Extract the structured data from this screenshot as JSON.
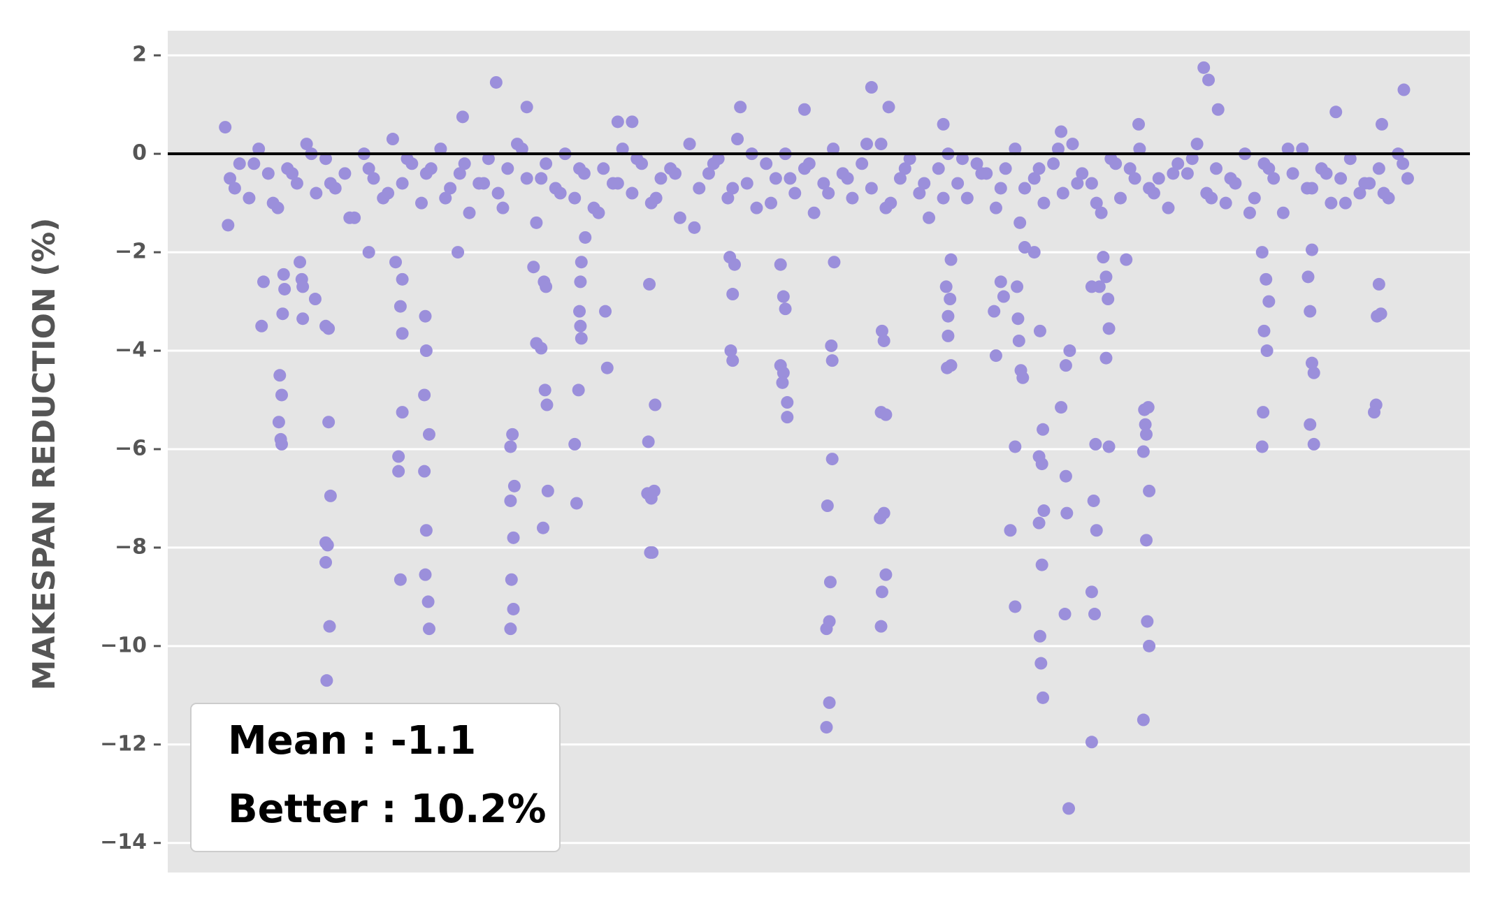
{
  "chart_data": {
    "type": "scatter",
    "ylabel": "MAKESPAN REDUCTION (%)",
    "annotations": [
      "Mean : -1.1",
      "Better : 10.2%"
    ],
    "color": "#9b8fdb",
    "hline": 0,
    "grid": true,
    "xlim": [
      175,
      1535
    ],
    "ylim": [
      -14.6,
      2.5
    ],
    "yticks": [
      2,
      0,
      {
        "value": -2,
        "label": "−2"
      },
      {
        "value": -4,
        "label": "−4"
      },
      {
        "value": -6,
        "label": "−6"
      },
      {
        "value": -8,
        "label": "−8"
      },
      {
        "value": -10,
        "label": "−10"
      },
      {
        "value": -12,
        "label": "−12"
      },
      {
        "value": -14,
        "label": "−14"
      }
    ],
    "x": [
      240,
      250,
      260,
      270,
      280,
      290,
      300,
      310,
      320,
      330,
      340,
      350,
      360,
      370,
      380,
      390,
      400,
      410,
      420,
      430,
      440,
      450,
      460,
      470,
      480,
      490,
      500,
      510,
      520,
      530,
      540,
      550,
      560,
      570,
      580,
      590,
      600,
      610,
      620,
      630,
      640,
      650,
      660,
      670,
      680,
      690,
      700,
      710,
      720,
      730,
      740,
      750,
      760,
      770,
      780,
      790,
      800,
      810,
      820,
      830,
      840,
      850,
      860,
      870,
      880,
      890,
      900,
      910,
      920,
      930,
      940,
      950,
      960,
      970,
      980,
      990,
      1000,
      1010,
      1020,
      1030,
      1040,
      1050,
      1060,
      1070,
      1080,
      1090,
      1100,
      1110,
      1120,
      1130,
      1140,
      1150,
      1160,
      1170,
      1180,
      1190,
      1200,
      1210,
      1220,
      1230,
      1240,
      1250,
      1260,
      1270,
      1280,
      1290,
      1300,
      1310,
      1320,
      1330,
      1340,
      1350,
      1360,
      1370,
      1380,
      1390,
      1400,
      1410,
      1420,
      1430,
      1440,
      1450,
      1460,
      1470,
      245,
      265,
      285,
      305,
      325,
      345,
      365,
      385,
      405,
      425,
      445,
      465,
      485,
      505,
      525,
      545,
      565,
      585,
      605,
      625,
      645,
      665,
      685,
      705,
      725,
      745,
      765,
      785,
      805,
      825,
      845,
      865,
      885,
      905,
      925,
      945,
      965,
      985,
      1005,
      1025,
      1045,
      1065,
      1085,
      1105,
      1125,
      1145,
      1165,
      1185,
      1205,
      1225,
      1245,
      1265,
      1285,
      1305,
      1325,
      1345,
      1365,
      1385,
      1405,
      1425,
      1445,
      1465,
      235,
      238,
      275,
      273,
      292,
      294,
      291,
      293,
      294,
      296,
      297,
      295,
      313,
      315,
      316,
      316,
      329,
      340,
      343,
      343,
      345,
      340,
      342,
      340,
      344,
      341,
      385,
      413,
      420,
      418,
      420,
      420,
      416,
      416,
      418,
      444,
      445,
      443,
      448,
      443,
      445,
      444,
      447,
      448,
      478,
      483,
      518,
      550,
      533,
      535,
      537,
      533,
      536,
      534,
      536,
      533,
      557,
      560,
      565,
      568,
      570,
      569,
      571,
      572,
      567,
      600,
      602,
      604,
      605,
      606,
      607,
      606,
      607,
      611,
      632,
      634,
      645,
      660,
      678,
      677,
      676,
      680,
      683,
      684,
      679,
      681,
      762,
      765,
      763,
      765,
      767,
      773,
      815,
      818,
      820,
      815,
      818,
      817,
      822,
      822,
      840,
      864,
      867,
      863,
      866,
      866,
      863,
      869,
      868,
      869,
      871,
      910,
      928,
      921,
      923,
      920,
      925,
      919,
      923,
      925,
      921,
      920,
      985,
      988,
      992,
      990,
      990,
      989,
      993,
      993,
      1038,
      1040,
      1045,
      1048,
      1055,
      1060,
      1060,
      1062,
      1063,
      1064,
      1066,
      1068,
      1070,
      1080,
      1085,
      1088,
      1089,
      1086,
      1085,
      1090,
      1088,
      1086,
      1087,
      1089,
      1108,
      1113,
      1117,
      1113,
      1114,
      1112,
      1116,
      1108,
      1140,
      1142,
      1144,
      1145,
      1140,
      1143,
      1140,
      1148,
      1152,
      1155,
      1157,
      1155,
      1158,
      1158,
      1176,
      1189,
      1195,
      1199,
      1196,
      1197,
      1194,
      1200,
      1197,
      1198,
      1200,
      1194,
      1257,
      1262,
      1272,
      1318,
      1322,
      1325,
      1320,
      1323,
      1319,
      1318,
      1366,
      1368,
      1370,
      1372,
      1368,
      1372,
      1370,
      1395,
      1440,
      1438,
      1442,
      1437,
      1435,
      1466,
      1443
    ],
    "values": [
      -0.5,
      -0.2,
      -0.9,
      0.1,
      -0.4,
      -1.1,
      -0.3,
      -0.6,
      0.2,
      -0.8,
      -0.1,
      -0.7,
      -0.4,
      -1.3,
      0,
      -0.5,
      -0.9,
      0.3,
      -0.6,
      -0.2,
      -1.0,
      -0.3,
      0.1,
      -0.7,
      -0.4,
      -1.2,
      -0.6,
      -0.1,
      -0.8,
      -0.3,
      0.2,
      -0.5,
      -1.4,
      -0.2,
      -0.7,
      0,
      -0.9,
      -0.4,
      -1.1,
      -0.3,
      -0.6,
      0.1,
      -0.8,
      -0.2,
      -1.0,
      -0.5,
      -0.3,
      -1.3,
      0.2,
      -0.7,
      -0.4,
      -0.1,
      -0.9,
      0.3,
      -0.6,
      -1.1,
      -0.2,
      -0.5,
      0,
      -0.8,
      -0.3,
      -1.2,
      -0.6,
      0.1,
      -0.4,
      -0.9,
      -0.2,
      -0.7,
      0.2,
      -1.0,
      -0.5,
      -0.1,
      -0.8,
      -1.3,
      -0.3,
      0,
      -0.6,
      -0.9,
      -0.2,
      -0.4,
      -1.1,
      -0.3,
      0.1,
      -0.7,
      -0.5,
      -1.0,
      -0.2,
      -0.8,
      0.2,
      -0.4,
      -0.6,
      -1.2,
      -0.1,
      -0.9,
      -0.3,
      0.1,
      -0.7,
      -0.5,
      -1.1,
      -0.2,
      -0.4,
      0.2,
      -0.8,
      -0.3,
      -1.0,
      -0.6,
      0,
      -0.9,
      -0.2,
      -0.5,
      -1.2,
      -0.4,
      0.1,
      -0.7,
      -0.3,
      -1.0,
      -0.5,
      -0.1,
      -0.8,
      -0.6,
      -0.3,
      -0.9,
      0,
      -0.5,
      -0.7,
      -0.2,
      -1.0,
      -0.4,
      0,
      -0.6,
      -1.3,
      -0.3,
      -0.8,
      -0.1,
      -0.4,
      -0.9,
      -0.2,
      -0.6,
      -1.1,
      0.1,
      -0.5,
      -0.8,
      -0.3,
      -1.2,
      -0.6,
      -0.1,
      -0.9,
      -0.4,
      -1.5,
      -0.2,
      -0.7,
      0,
      -1.0,
      -0.5,
      -0.2,
      -0.8,
      -0.5,
      0.2,
      -1.1,
      -0.3,
      -0.6,
      -0.9,
      -0.1,
      -0.4,
      -0.7,
      -1.4,
      -0.3,
      0.1,
      -0.6,
      -1.0,
      -0.2,
      -0.5,
      -0.8,
      -0.4,
      -0.1,
      -0.9,
      -0.5,
      -1.2,
      -0.3,
      0.1,
      -0.7,
      -0.4,
      -1.0,
      -0.6,
      -0.8,
      -0.2,
      0.54,
      -1.45,
      -2.6,
      -3.5,
      -4.5,
      -4.9,
      -5.45,
      -5.8,
      -5.9,
      -2.45,
      -2.75,
      -3.25,
      -2.2,
      -2.55,
      -2.7,
      -3.35,
      -2.95,
      -3.5,
      -3.55,
      -5.45,
      -6.95,
      -7.9,
      -7.95,
      -8.3,
      -9.6,
      -10.7,
      -2.0,
      -2.2,
      -2.55,
      -3.1,
      -3.65,
      -5.25,
      -6.15,
      -6.45,
      -8.65,
      -3.3,
      -4.0,
      -4.9,
      -5.7,
      -6.45,
      -7.65,
      -8.55,
      -9.1,
      -9.65,
      -2.0,
      0.75,
      1.45,
      0.95,
      -5.95,
      -5.7,
      -6.75,
      -7.05,
      -7.8,
      -8.65,
      -9.25,
      -9.65,
      -2.3,
      -3.85,
      -3.95,
      -2.6,
      -2.7,
      -4.8,
      -5.1,
      -6.85,
      -7.6,
      -5.9,
      -7.1,
      -4.8,
      -3.2,
      -3.5,
      -3.75,
      -2.6,
      -2.2,
      -1.7,
      -3.2,
      -4.35,
      0.65,
      0.65,
      -2.65,
      -5.85,
      -6.9,
      -7.0,
      -6.85,
      -5.1,
      -8.1,
      -8.1,
      -2.1,
      -2.85,
      -4.0,
      -4.2,
      -2.25,
      0.95,
      -2.25,
      -2.9,
      -3.15,
      -4.3,
      -4.45,
      -4.65,
      -5.05,
      -5.35,
      0.9,
      -7.15,
      -8.7,
      -9.65,
      -9.5,
      -11.15,
      -11.65,
      -6.2,
      -3.9,
      -4.2,
      -2.2,
      1.35,
      0.95,
      -3.6,
      -3.8,
      -5.25,
      -5.3,
      -7.4,
      -7.3,
      -8.55,
      -8.9,
      -9.6,
      0.6,
      -2.7,
      -2.95,
      -3.3,
      -3.7,
      -4.35,
      -4.3,
      -2.15,
      -3.2,
      -4.1,
      -2.6,
      -2.9,
      -7.65,
      -5.95,
      -9.2,
      -2.7,
      -3.35,
      -3.8,
      -4.4,
      -4.55,
      -1.9,
      -2.0,
      -6.15,
      -6.3,
      -5.6,
      -3.6,
      -7.5,
      -7.25,
      -8.35,
      -9.8,
      -10.35,
      -11.05,
      -5.15,
      -4.3,
      -4.0,
      -6.55,
      -7.3,
      -9.35,
      -13.3,
      0.45,
      -2.7,
      -7.05,
      -5.9,
      -7.65,
      -8.9,
      -9.35,
      -11.95,
      -2.7,
      -2.1,
      -2.5,
      -2.95,
      -4.15,
      -3.55,
      -5.95,
      -2.15,
      0.6,
      -5.2,
      -5.15,
      -5.5,
      -5.7,
      -6.05,
      -6.85,
      -7.85,
      -9.5,
      -10.0,
      -11.5,
      1.75,
      1.5,
      0.9,
      -2.0,
      -2.55,
      -3.0,
      -3.6,
      -4.0,
      -5.25,
      -5.95,
      -2.5,
      -3.2,
      -4.25,
      -4.45,
      -5.5,
      -5.9,
      -1.95,
      0.85,
      -2.65,
      -3.3,
      -3.25,
      -5.1,
      -5.25,
      1.3,
      0.6
    ]
  }
}
